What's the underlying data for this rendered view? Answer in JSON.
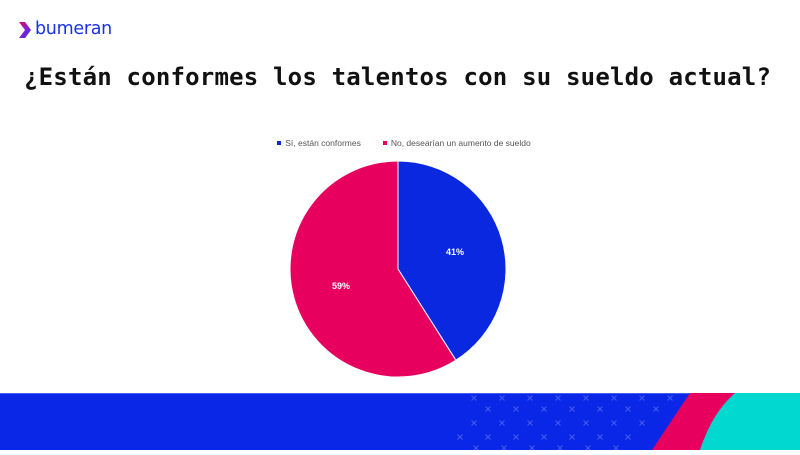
{
  "brand": {
    "name": "bumeran",
    "logo_icon": "chevron-right-icon",
    "color": "#1a32e6"
  },
  "slide": {
    "title": "¿Están conformes los talentos con su sueldo actual?"
  },
  "legend": [
    {
      "label": "Sí, están conformes",
      "color": "#0a28e0"
    },
    {
      "label": "No, desearían un aumento de sueldo",
      "color": "#e8005f"
    }
  ],
  "slice_labels": [
    "41%",
    "59%"
  ],
  "colors": {
    "blue": "#0a28e0",
    "pink": "#e8005f",
    "teal": "#00d8d0",
    "footer_blue": "#0a26e6"
  },
  "chart_data": {
    "type": "pie",
    "title": "¿Están conformes los talentos con su sueldo actual?",
    "categories": [
      "Sí, están conformes",
      "No, desearían un aumento de sueldo"
    ],
    "values": [
      41,
      59
    ],
    "unit": "%",
    "data_labels": [
      "41%",
      "59%"
    ],
    "colors": [
      "#0a28e0",
      "#e8005f"
    ],
    "legend_position": "top",
    "start_angle": "12 o'clock, clockwise"
  }
}
